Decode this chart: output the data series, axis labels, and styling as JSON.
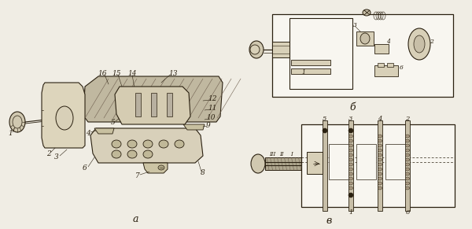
{
  "bg_color": "#f0ede4",
  "line_color": "#2a2010",
  "fill_light": "#d8d0b8",
  "fill_medium": "#c8bfa8",
  "fill_dark": "#b8af98",
  "fill_hatch": "#a8a090",
  "white": "#f8f6f0",
  "figsize": [
    6.0,
    2.91
  ],
  "dpi": 100,
  "label_a": "a",
  "label_b": "б",
  "label_v": "в"
}
